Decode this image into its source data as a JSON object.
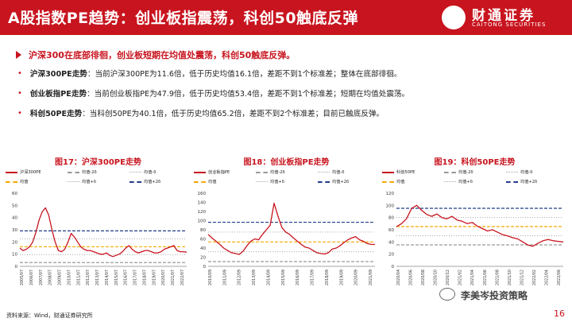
{
  "header": {
    "title": "A股指数PE趋势：创业板指震荡，科创50触底反弹",
    "logo_cn": "财通证券",
    "logo_en": "CAITONG SECURITIES",
    "color": "#c8141e"
  },
  "bullets": {
    "lead": "沪深300在底部徘徊，创业板短期在均值处震荡，科创50触底反弹。",
    "items": [
      {
        "label": "沪深300PE走势",
        "text": "：当前沪深300PE为11.6倍，低于历史均值16.1倍，差距不到1个标准差；整体在底部徘徊。"
      },
      {
        "label": "创业板指PE走势",
        "text": "：当前创业板指PE为47.9倍，低于历史均值53.4倍，差距不到1个标准差；短期在均值处震荡。"
      },
      {
        "label": "科创50PE走势",
        "text": "：当科创50PE为40.1倍，低于历史均值65.2倍，差距不到2个标准差；目前已触底反弹。"
      }
    ]
  },
  "charts": [
    {
      "title": "图17：沪深300PE走势",
      "legend": [
        "沪深300PE",
        "均值-2δ",
        "均值-δ",
        "均值",
        "均值+δ",
        "均值+2δ"
      ],
      "chart_data": {
        "type": "line",
        "ylim": [
          0,
          60
        ],
        "yticks": [
          "0",
          "10",
          "20",
          "30",
          "40",
          "50",
          "60"
        ],
        "xticks": [
          "2005/07",
          "2006/07",
          "2007/07",
          "2008/07",
          "2009/07",
          "2010/07",
          "2011/07",
          "2012/07",
          "2013/07",
          "2014/07",
          "2015/07",
          "2016/07",
          "2017/07",
          "2018/07",
          "2019/07",
          "2020/07",
          "2021/07",
          "2022/07"
        ],
        "bands": {
          "mean_minus_2": 3.1,
          "mean_minus_1": 9.6,
          "mean": 16.1,
          "mean_plus_1": 22.6,
          "mean_plus_2": 29.1
        },
        "series": [
          {
            "name": "沪深300PE",
            "color": "#c8141e",
            "values": [
              15,
              13,
              14,
              16,
              20,
              28,
              38,
              45,
              48,
              42,
              30,
              20,
              13,
              12,
              14,
              20,
              27,
              24,
              20,
              16,
              14,
              13,
              13,
              12,
              11,
              10,
              10,
              11,
              9,
              8,
              9,
              10,
              12,
              15,
              17,
              14,
              12,
              11,
              12,
              13,
              13,
              12,
              11,
              11,
              12,
              14,
              15,
              16,
              17,
              13,
              12,
              12,
              11.6
            ]
          }
        ]
      }
    },
    {
      "title": "图18：创业板指PE走势",
      "legend": [
        "创业板指PE",
        "均值-2δ",
        "均值-δ",
        "均值",
        "均值+δ",
        "均值+2δ"
      ],
      "chart_data": {
        "type": "line",
        "ylim": [
          0,
          160
        ],
        "yticks": [
          "0",
          "20",
          "40",
          "60",
          "80",
          "100",
          "120",
          "140",
          "160"
        ],
        "xticks": [
          "2010/09",
          "2011/09",
          "2012/09",
          "2013/09",
          "2014/09",
          "2015/09",
          "2016/09",
          "2017/09",
          "2018/09",
          "2019/09",
          "2020/09",
          "2021/09"
        ],
        "bands": {
          "mean_minus_2": 10.4,
          "mean_minus_1": 31.9,
          "mean": 53.4,
          "mean_plus_1": 74.9,
          "mean_plus_2": 96.4
        },
        "series": [
          {
            "name": "创业板指PE",
            "color": "#c8141e",
            "values": [
              70,
              62,
              55,
              48,
              40,
              35,
              30,
              28,
              26,
              33,
              45,
              55,
              60,
              58,
              70,
              80,
              90,
              138,
              110,
              85,
              75,
              70,
              62,
              55,
              48,
              42,
              40,
              35,
              30,
              28,
              27,
              30,
              38,
              40,
              45,
              52,
              58,
              62,
              65,
              58,
              55,
              50,
              48,
              47.9
            ]
          }
        ]
      }
    },
    {
      "title": "图19：科创50PE走势",
      "legend": [
        "科创50PE",
        "均值-2δ",
        "均值-δ",
        "均值",
        "均值+δ",
        "均值+2δ"
      ],
      "chart_data": {
        "type": "line",
        "ylim": [
          0,
          120
        ],
        "yticks": [
          "0",
          "20",
          "40",
          "60",
          "80",
          "100",
          "120"
        ],
        "xticks": [
          "2020/04",
          "2020/06",
          "2020/08",
          "2020/10",
          "2020/12",
          "2021/02",
          "2021/04",
          "2021/06",
          "2021/08",
          "2021/10",
          "2021/12",
          "2022/02",
          "2022/04",
          "2022/06"
        ],
        "bands": {
          "mean_minus_2": 35.2,
          "mean_minus_1": 50.2,
          "mean": 65.2,
          "mean_plus_1": 80.2,
          "mean_plus_2": 95.2
        },
        "series": [
          {
            "name": "科创50PE",
            "color": "#c8141e",
            "values": [
              65,
              70,
              78,
              95,
              100,
              92,
              85,
              82,
              86,
              80,
              78,
              82,
              76,
              74,
              70,
              72,
              66,
              62,
              58,
              60,
              56,
              52,
              50,
              47,
              45,
              40,
              35,
              33,
              38,
              42,
              44,
              42,
              41,
              40.1
            ]
          }
        ]
      }
    }
  ],
  "footer": {
    "source": "资料来源：Wind，财通证券研究所",
    "page": "16",
    "watermark": "李美岑投资策略"
  }
}
